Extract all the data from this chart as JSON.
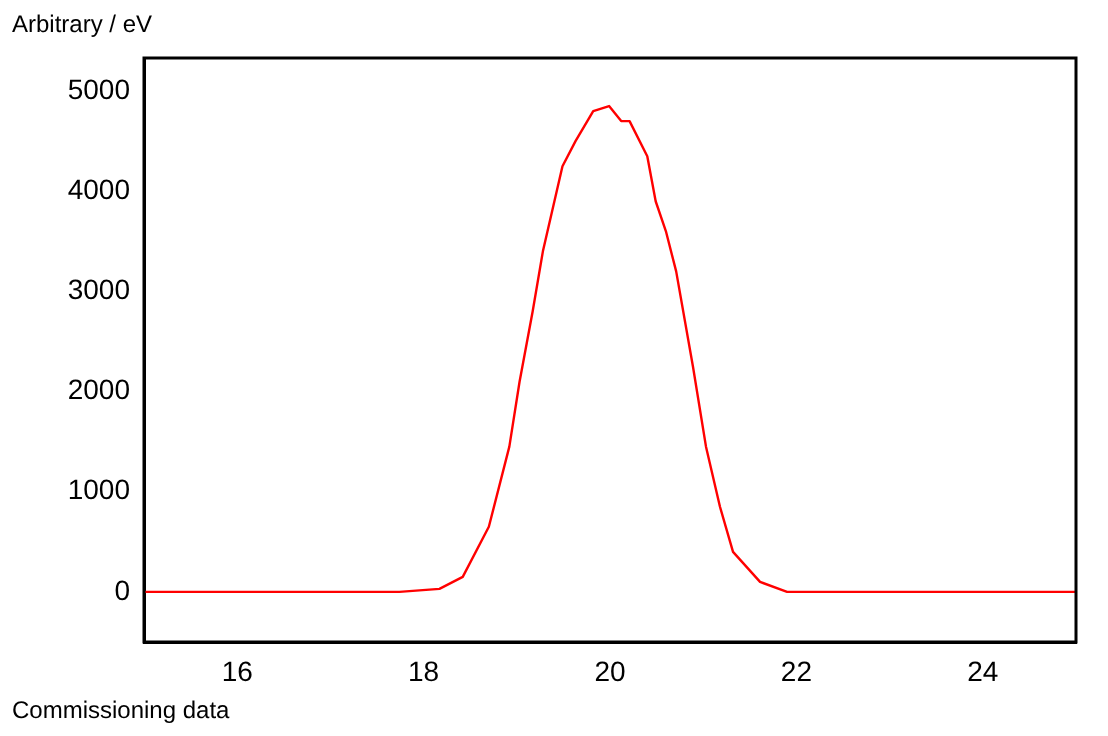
{
  "chart_data": {
    "type": "line",
    "ylabel": "Arbitrary / eV",
    "annotations": [
      "Commissioning data"
    ],
    "x": [
      15,
      17.74,
      18.17,
      18.42,
      18.7,
      18.92,
      19.03,
      19.17,
      19.28,
      19.49,
      19.63,
      19.82,
      19.99,
      20.12,
      20.21,
      20.4,
      20.49,
      20.6,
      20.71,
      20.89,
      21.03,
      21.18,
      21.32,
      21.61,
      21.9,
      25
    ],
    "series": [
      {
        "color": "#ff0000",
        "values": [
          0,
          0,
          30,
          150,
          650,
          1450,
          2100,
          2800,
          3400,
          4250,
          4500,
          4800,
          4850,
          4700,
          4700,
          4350,
          3900,
          3600,
          3200,
          2250,
          1450,
          850,
          400,
          100,
          0,
          0
        ]
      }
    ],
    "xlim": [
      15,
      25
    ],
    "xticks": [
      16,
      18,
      20,
      22,
      24
    ],
    "ylim": [
      -500,
      5330
    ],
    "yticks": [
      0,
      1000,
      2000,
      3000,
      4000,
      5000
    ],
    "grid": false,
    "legend": false,
    "marker": "none",
    "line_style": "solid"
  }
}
